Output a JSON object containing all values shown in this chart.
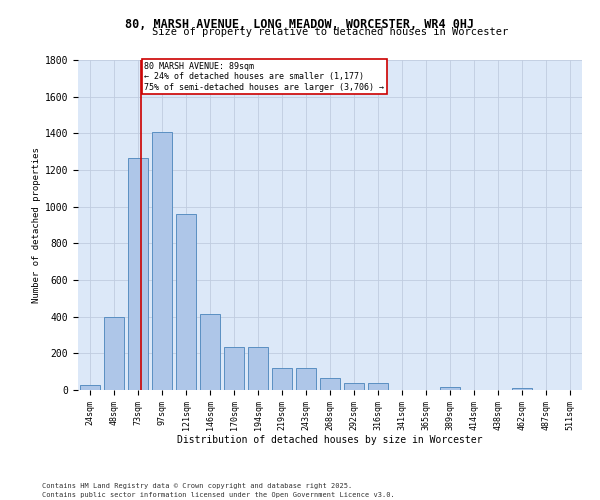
{
  "title": "80, MARSH AVENUE, LONG MEADOW, WORCESTER, WR4 0HJ",
  "subtitle": "Size of property relative to detached houses in Worcester",
  "xlabel": "Distribution of detached houses by size in Worcester",
  "ylabel": "Number of detached properties",
  "categories": [
    "24sqm",
    "48sqm",
    "73sqm",
    "97sqm",
    "121sqm",
    "146sqm",
    "170sqm",
    "194sqm",
    "219sqm",
    "243sqm",
    "268sqm",
    "292sqm",
    "316sqm",
    "341sqm",
    "365sqm",
    "389sqm",
    "414sqm",
    "438sqm",
    "462sqm",
    "487sqm",
    "511sqm"
  ],
  "values": [
    25,
    400,
    1265,
    1405,
    960,
    415,
    235,
    235,
    120,
    120,
    65,
    40,
    40,
    0,
    0,
    15,
    0,
    0,
    10,
    0,
    0
  ],
  "bar_color": "#aec6e8",
  "bar_edge_color": "#5a8fc2",
  "background_color": "#dce8f8",
  "grid_color": "#c0cce0",
  "vline_color": "#cc0000",
  "box_color": "#cc0000",
  "ylim": [
    0,
    1800
  ],
  "yticks": [
    0,
    200,
    400,
    600,
    800,
    1000,
    1200,
    1400,
    1600,
    1800
  ],
  "footnote1": "Contains HM Land Registry data © Crown copyright and database right 2025.",
  "footnote2": "Contains public sector information licensed under the Open Government Licence v3.0."
}
